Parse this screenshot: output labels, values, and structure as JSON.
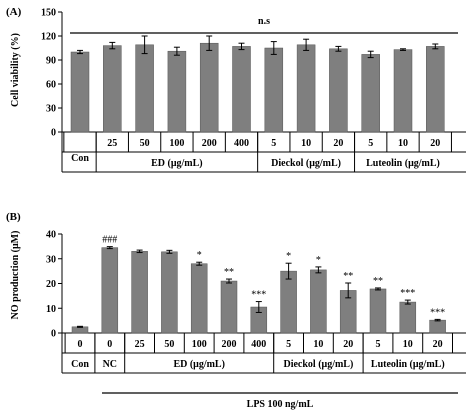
{
  "colors": {
    "bar": "#7f7f7f",
    "axis": "#000000",
    "background": "#ffffff"
  },
  "chart_data": [
    {
      "panel": "(A)",
      "type": "bar",
      "ylabel": "Cell viability (%)",
      "ylim": [
        0,
        150
      ],
      "yticks": [
        0,
        30,
        60,
        90,
        120,
        150
      ],
      "annotation": "n.s",
      "categories": [
        "Con",
        "25",
        "50",
        "100",
        "200",
        "400",
        "5",
        "10",
        "20",
        "5",
        "10",
        "20"
      ],
      "values": [
        100,
        108,
        109,
        101,
        111,
        107,
        105,
        109,
        104,
        97,
        103,
        107
      ],
      "errors": [
        2,
        4,
        11,
        5,
        9,
        4,
        8,
        7,
        3,
        4,
        1,
        3
      ],
      "group_labels": [
        "ED (μg/mL)",
        "Dieckol (μg/mL)",
        "Luteolin (μg/mL)"
      ]
    },
    {
      "panel": "(B)",
      "type": "bar",
      "ylabel": "NO production (μM)",
      "ylim": [
        0,
        40
      ],
      "yticks": [
        0,
        10,
        20,
        30,
        40
      ],
      "categories": [
        "0",
        "0",
        "25",
        "50",
        "100",
        "200",
        "400",
        "5",
        "10",
        "20",
        "5",
        "10",
        "20"
      ],
      "values": [
        2.5,
        34.5,
        33,
        32.8,
        28,
        21,
        10.5,
        25,
        25.5,
        17.2,
        17.8,
        12.5,
        5.2
      ],
      "errors": [
        0.2,
        0.4,
        0.5,
        0.6,
        0.6,
        0.8,
        2.2,
        3.2,
        1.2,
        3,
        0.4,
        0.8,
        0.3
      ],
      "significance": [
        "",
        "###",
        "",
        "",
        "*",
        "**",
        "***",
        "*",
        "*",
        "**",
        "**",
        "***",
        "***"
      ],
      "group_labels": [
        "Con",
        "NC",
        "ED (μg/mL)",
        "Dieckol (μg/mL)",
        "Luteolin (μg/mL)"
      ],
      "footer_label": "LPS 100 ng/mL"
    }
  ]
}
